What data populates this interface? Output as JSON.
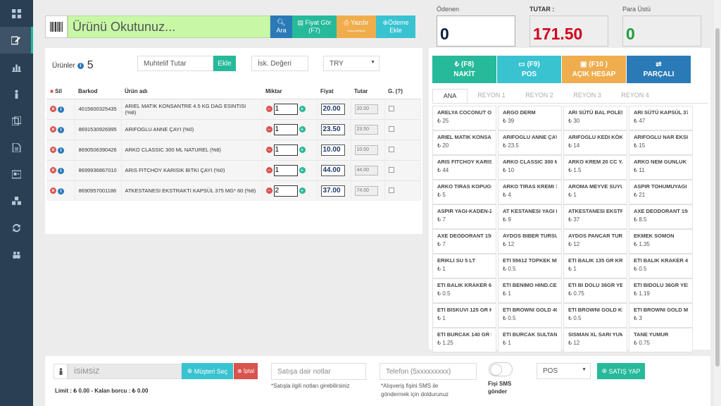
{
  "sidebar": {
    "items": [
      "dashboard-icon",
      "edit-icon",
      "bar-chart-icon",
      "person-icon",
      "copy-icon",
      "document-icon",
      "id-card-icon",
      "cubes-icon",
      "refresh-icon",
      "users-icon"
    ]
  },
  "scan": {
    "placeholder": "Ürünü Okutunuz...",
    "ara": "Ara",
    "fiyat_line1": "Fiyat Gör",
    "fiyat_line2": "(F7)",
    "yazdir": "Yazdır",
    "yazdir_small": "Satış belirleyin",
    "odeme_line1": "Ödeme",
    "odeme_line2": "Ekle"
  },
  "totals": {
    "odenen_label": "Ödenen",
    "odenen_value": "0",
    "tutar_label": "TUTAR :",
    "tutar_value": "171.50",
    "paraustu_label": "Para Üstü",
    "paraustu_value": "0"
  },
  "products": {
    "title": "Ürünler",
    "count": "5",
    "muhtelif_placeholder": "Muhtelif Tutar",
    "ekle": "Ekle",
    "isk_placeholder": "İsk. Değeri",
    "currency": "TRY",
    "headers": {
      "sil": "Sil",
      "barkod": "Barkod",
      "urun": "Ürün adı",
      "miktar": "Miktar",
      "fiyat": "Fiyat",
      "tutar": "Tutar",
      "g": "G. (?)"
    },
    "rows": [
      {
        "barkod": "4015600325435",
        "name": "ARIEL MATIK KONSANTRE 4.5 KG DAG ESINTISI (%8)",
        "qty": "1",
        "price": "20.00",
        "total": "20.00"
      },
      {
        "barkod": "8691530926995",
        "name": "ARIFOGLU ANNE ÇAYI (%0)",
        "qty": "1",
        "price": "23.50",
        "total": "23.50"
      },
      {
        "barkod": "8690506390426",
        "name": "ARKO CLASSIC 300 ML NATUREL (%8)",
        "qty": "1",
        "price": "10.00",
        "total": "10.00"
      },
      {
        "barkod": "8699936867010",
        "name": "ARIS FITCHOY KARISIK BITKI ÇAYI (%0)",
        "qty": "1",
        "price": "44.00",
        "total": "44.00"
      },
      {
        "barkod": "8690957001186",
        "name": "ATKESTANESI EKSTRAKTI KAPSÜL 375 MG* 60 (%8)",
        "qty": "2",
        "price": "37.00",
        "total": "74.00"
      }
    ]
  },
  "payment": {
    "buttons": [
      {
        "key": "(F8)",
        "label": "NAKİT",
        "color": "#26b99a",
        "icon": "₺"
      },
      {
        "key": "(F9)",
        "label": "POS",
        "color": "#39c3d1",
        "icon": "card-icon"
      },
      {
        "key": "(F10 )",
        "label": "AÇIK HESAP",
        "color": "#f0ad4e",
        "icon": "book-icon"
      },
      {
        "key": "",
        "label": "PARÇALI",
        "color": "#2a7ab8",
        "icon": "shuffle-icon"
      }
    ],
    "tabs": [
      "ANA",
      "REYON 1",
      "REYON 2",
      "REYON 3",
      "REYON 4"
    ]
  },
  "quick_products": [
    {
      "name": "ARELYA COCONUT OI",
      "price": "₺ 25"
    },
    {
      "name": "ARGO DERM",
      "price": "₺ 39"
    },
    {
      "name": "ARI SÜTÜ BAL POLEN",
      "price": "₺ 30"
    },
    {
      "name": "ARI SÜTÜ KAPSÜL 375",
      "price": "₺ 47"
    },
    {
      "name": "ARIEL MATIK KONSAN",
      "price": "₺ 20"
    },
    {
      "name": "ARIFOGLU ANNE ÇAY",
      "price": "₺ 23.5"
    },
    {
      "name": "ARIFOGLU KEDI KÖKÜ",
      "price": "₺ 14"
    },
    {
      "name": "ARIFOGLU NAR EKSIS",
      "price": "₺ 15"
    },
    {
      "name": "ARIS FITCHOY KARISI",
      "price": "₺ 44"
    },
    {
      "name": "ARKO CLASSIC 300 MI",
      "price": "₺ 10"
    },
    {
      "name": "ARKO KREM 20 CC YA",
      "price": "₺ 1.5"
    },
    {
      "name": "ARKO NEM GUNLUK",
      "price": "₺ 11"
    },
    {
      "name": "ARKO TIRAS KOPUGU",
      "price": "₺ 5"
    },
    {
      "name": "ARKO TIRAS KREMI 10",
      "price": "₺ 4"
    },
    {
      "name": "AROMA MEYVE SUYU",
      "price": "₺ 1"
    },
    {
      "name": "ASPIR TOHUMUYAGI",
      "price": "₺ 21"
    },
    {
      "name": "ASPIR YAGI-KADEN-20",
      "price": "₺ 7"
    },
    {
      "name": "AT KESTANESI YAGI K",
      "price": "₺ 9"
    },
    {
      "name": "ATKESTANESI EKSTRA",
      "price": "₺ 37"
    },
    {
      "name": "AXE DEODORANT 150",
      "price": "₺ 8.5"
    },
    {
      "name": "AXE DEODORANT 150",
      "price": "₺ 7"
    },
    {
      "name": "AYDOS BIBER TURSUS",
      "price": "₺ 12"
    },
    {
      "name": "AYDOS PANCAR TURS",
      "price": "₺ 12"
    },
    {
      "name": "EKMEK SOMON",
      "price": "₺ 1.35"
    },
    {
      "name": "ERIKLI SU 5 LT",
      "price": "₺ 1"
    },
    {
      "name": "ETI 55612 TOPKEK ME",
      "price": "₺ 0.5"
    },
    {
      "name": "ETI BALIK 135 GR KRA",
      "price": "₺ 1"
    },
    {
      "name": "ETI BALIK KRAKER 45",
      "price": "₺ 0.5"
    },
    {
      "name": "ETI BALIK KRAKER 60",
      "price": "₺ 0.5"
    },
    {
      "name": "ETI BENIMO HIND.CE",
      "price": "₺ 1"
    },
    {
      "name": "ETI BI DOLU 36GR YE",
      "price": "₺ 0.75"
    },
    {
      "name": "ETI BIDOLU 36GR YER",
      "price": "₺ 1.19"
    },
    {
      "name": "ETI BISKUVI 125 GR K",
      "price": "₺ 1"
    },
    {
      "name": "ETI BROWNI GOLD 40",
      "price": "₺ 0.5"
    },
    {
      "name": "ETI BROWNI GOLD KE",
      "price": "₺ 0.5"
    },
    {
      "name": "ETI BROWNI GOLD M",
      "price": "₺ 3"
    },
    {
      "name": "ETI BURCAK 140 GR K",
      "price": "₺ 1.25"
    },
    {
      "name": "ETI BURCAK SULTANI",
      "price": "₺ 1"
    },
    {
      "name": "SISMAN XL SARI YUM",
      "price": "₺ 12"
    },
    {
      "name": "TANE YUMUR",
      "price": "₺ 0.75"
    }
  ],
  "customer": {
    "name": "İSİMSİZ",
    "musteri_sec": "Müşteri Seç",
    "iptal": "İptal",
    "limit": "Limit : ₺ 0.00 - Kalan borcu : ₺ 0.00"
  },
  "notes": {
    "placeholder": "Satışa dair notlar",
    "hint": "*Satışla ilgili notları girebilirsiniz"
  },
  "phone": {
    "placeholder": "Telefon (5xxxxxxxxx)",
    "hint1": "*Alışveriş fişini SMS ile",
    "hint2": "göndermek için doldurunuz"
  },
  "sms": {
    "line1": "Fişi SMS",
    "line2": "gönder"
  },
  "pos_select": "POS",
  "satis_yap": "SATIŞ YAP"
}
